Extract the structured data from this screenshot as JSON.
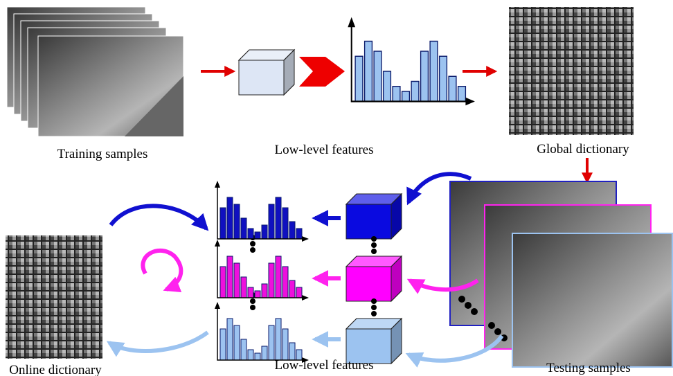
{
  "top": {
    "training_label": "Training samples",
    "features_label": "Low-level features",
    "global_label": "Global dictionary"
  },
  "bottom": {
    "online_label": "Online dictionary",
    "features_label": "Low-level features",
    "testing_label": "Testing samples"
  }
}
